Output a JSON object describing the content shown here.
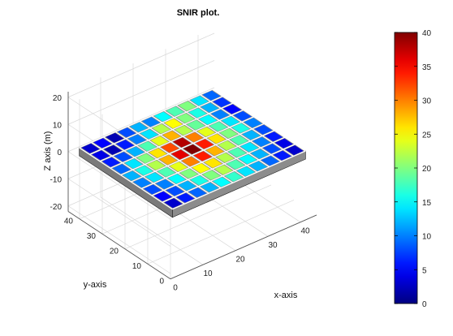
{
  "chart_data": {
    "type": "heatmap",
    "title": "SNIR plot.",
    "xlabel": "x-axis",
    "ylabel": "y-axis",
    "zlabel": "Z axis (m)",
    "xlim": [
      0,
      45
    ],
    "ylim": [
      0,
      45
    ],
    "zlim": [
      -22,
      22
    ],
    "x_ticks": [
      "0",
      "10",
      "20",
      "30",
      "40"
    ],
    "y_ticks": [
      "0",
      "10",
      "20",
      "30",
      "40"
    ],
    "z_ticks": [
      "20",
      "10",
      "0",
      "-10",
      "-20"
    ],
    "grid": true,
    "colorbar": {
      "colormap": "jet",
      "range": [
        0,
        40
      ],
      "ticks": [
        "40",
        "35",
        "30",
        "25",
        "20",
        "15",
        "10",
        "5",
        "0"
      ]
    },
    "floorplan": {
      "floor_color": "#8c8c8c",
      "wall_color": "#ffffff",
      "room_grid": [
        [
          3,
          5,
          2,
          8,
          12,
          10,
          15,
          18,
          20,
          14,
          9
        ],
        [
          4,
          2,
          6,
          10,
          14,
          22,
          25,
          20,
          16,
          12,
          7
        ],
        [
          6,
          8,
          12,
          18,
          24,
          28,
          22,
          19,
          15,
          10,
          5
        ],
        [
          9,
          14,
          20,
          26,
          32,
          38,
          30,
          24,
          18,
          14,
          8
        ],
        [
          12,
          16,
          22,
          28,
          36,
          40,
          34,
          26,
          20,
          16,
          10
        ],
        [
          10,
          14,
          18,
          24,
          30,
          34,
          28,
          22,
          18,
          12,
          8
        ],
        [
          8,
          10,
          15,
          20,
          25,
          26,
          22,
          18,
          14,
          10,
          6
        ],
        [
          5,
          8,
          12,
          16,
          20,
          22,
          18,
          15,
          12,
          8,
          4
        ],
        [
          3,
          6,
          9,
          12,
          15,
          17,
          14,
          12,
          9,
          6,
          3
        ]
      ]
    }
  }
}
